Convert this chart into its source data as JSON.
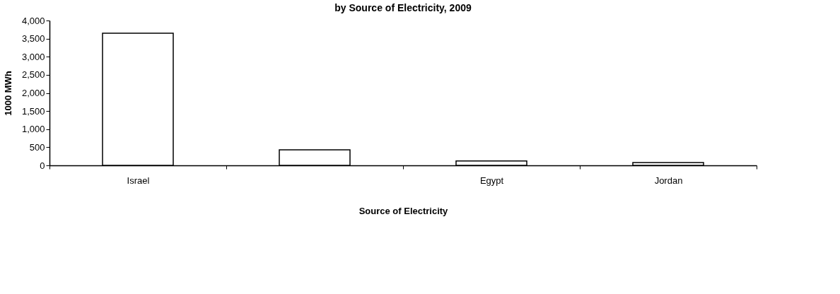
{
  "chart_data": {
    "type": "bar",
    "title": "by Source of Electricity, 2009",
    "xlabel": "Source of Electricity",
    "ylabel": "1000 MWh",
    "categories": [
      "Israel",
      null,
      "Egypt",
      "Jordan"
    ],
    "values": [
      3650,
      430,
      120,
      80
    ],
    "color": "#ffffff",
    "ylim": [
      0,
      4000
    ],
    "yticks": [
      {
        "value": 0,
        "label": "0"
      },
      {
        "value": 500,
        "label": "500"
      },
      {
        "value": 1000,
        "label": "1,000"
      },
      {
        "value": 1500,
        "label": "1,500"
      },
      {
        "value": 2000,
        "label": "2,000"
      },
      {
        "value": 2500,
        "label": "2,500"
      },
      {
        "value": 3000,
        "label": "3,000"
      },
      {
        "value": 3500,
        "label": "3,500"
      },
      {
        "value": 4000,
        "label": "4,000"
      }
    ],
    "grid": false
  }
}
